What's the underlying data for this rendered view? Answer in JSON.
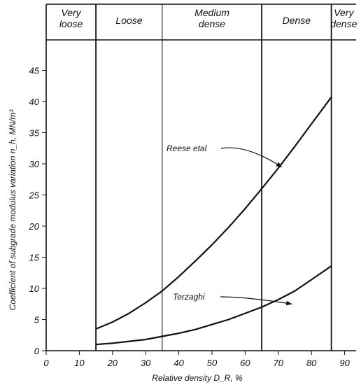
{
  "chart_data": {
    "type": "line",
    "title": "",
    "xlabel": "Relative density D_R, %",
    "ylabel": "Coefficient of subgrade modulus variation n_h, MN/m³",
    "xlim": [
      0,
      100
    ],
    "ylim": [
      0,
      50
    ],
    "x_ticks": [
      "0",
      "10",
      "20",
      "30",
      "40",
      "50",
      "60",
      "70",
      "80",
      "90"
    ],
    "y_ticks": [
      "0",
      "5",
      "10",
      "15",
      "20",
      "25",
      "30",
      "35",
      "40",
      "45"
    ],
    "grid": false,
    "legend": "none",
    "series": [
      {
        "name": "Reese etal",
        "x": [
          15,
          20,
          25,
          30,
          35,
          40,
          45,
          50,
          55,
          60,
          65,
          70,
          75,
          80,
          86
        ],
        "y": [
          3.5,
          4.6,
          6.0,
          7.7,
          9.6,
          11.9,
          14.4,
          17.0,
          19.8,
          22.8,
          26.0,
          29.3,
          32.8,
          36.4,
          40.7
        ]
      },
      {
        "name": "Terzaghi",
        "x": [
          15,
          20,
          25,
          30,
          35,
          40,
          45,
          50,
          55,
          60,
          65,
          70,
          75,
          80,
          86
        ],
        "y": [
          1.0,
          1.2,
          1.5,
          1.8,
          2.3,
          2.8,
          3.4,
          4.2,
          5.0,
          6.0,
          7.0,
          8.2,
          9.6,
          11.4,
          13.6
        ]
      }
    ],
    "zones": [
      {
        "label": [
          "Very",
          "loose"
        ],
        "from": 0,
        "to": 15
      },
      {
        "label": [
          "Loose"
        ],
        "from": 15,
        "to": 35
      },
      {
        "label": [
          "Medium",
          "dense"
        ],
        "from": 35,
        "to": 65
      },
      {
        "label": [
          "Dense"
        ],
        "from": 65,
        "to": 86
      },
      {
        "label": [
          "Very",
          "dense"
        ],
        "from": 86,
        "to": 100
      }
    ],
    "annotations": [
      {
        "text": "Reese etal",
        "points_to": [
          71,
          29.5
        ]
      },
      {
        "text": "Terzaghi",
        "points_to": [
          74,
          7.5
        ]
      }
    ]
  }
}
